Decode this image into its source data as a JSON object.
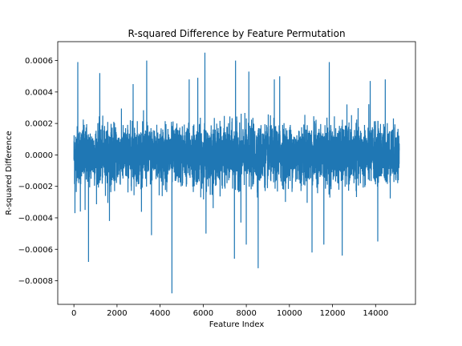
{
  "chart_data": {
    "type": "line",
    "title": "R-squared Difference by Feature Permutation",
    "xlabel": "Feature Index",
    "ylabel": "R-squared Difference",
    "xlim": [
      -750,
      15850
    ],
    "ylim": [
      -0.00095,
      0.00072
    ],
    "x_ticks": [
      0,
      2000,
      4000,
      6000,
      8000,
      10000,
      12000,
      14000
    ],
    "x_tick_labels": [
      "0",
      "2000",
      "4000",
      "6000",
      "8000",
      "10000",
      "12000",
      "14000"
    ],
    "y_ticks": [
      -0.0008,
      -0.0006,
      -0.0004,
      -0.0002,
      0.0,
      0.0002,
      0.0004,
      0.0006
    ],
    "y_tick_labels": [
      "−0.0008",
      "−0.0006",
      "−0.0004",
      "−0.0002",
      "0.0000",
      "0.0002",
      "0.0004",
      "0.0006"
    ],
    "grid": false,
    "legend": "none",
    "series": [
      {
        "color": "#1f77b4",
        "n_points": 15100,
        "noise_scale": 9e-05,
        "notable_points": [
          {
            "x": 50,
            "y": -0.00037
          },
          {
            "x": 180,
            "y": 0.00059
          },
          {
            "x": 300,
            "y": -0.00036
          },
          {
            "x": 520,
            "y": -0.00035
          },
          {
            "x": 680,
            "y": -0.00068
          },
          {
            "x": 1200,
            "y": 0.00052
          },
          {
            "x": 1650,
            "y": -0.00042
          },
          {
            "x": 2750,
            "y": 0.00045
          },
          {
            "x": 3380,
            "y": 0.0006
          },
          {
            "x": 3600,
            "y": -0.00051
          },
          {
            "x": 4550,
            "y": -0.00088
          },
          {
            "x": 5350,
            "y": 0.00048
          },
          {
            "x": 5750,
            "y": 0.00049
          },
          {
            "x": 6080,
            "y": 0.00065
          },
          {
            "x": 6130,
            "y": -0.0005
          },
          {
            "x": 7500,
            "y": 0.0006
          },
          {
            "x": 7450,
            "y": -0.00066
          },
          {
            "x": 7750,
            "y": -0.00043
          },
          {
            "x": 8120,
            "y": 0.00053
          },
          {
            "x": 8000,
            "y": -0.00057
          },
          {
            "x": 8550,
            "y": -0.00072
          },
          {
            "x": 9300,
            "y": 0.00048
          },
          {
            "x": 9550,
            "y": 0.0005
          },
          {
            "x": 11050,
            "y": -0.00062
          },
          {
            "x": 11600,
            "y": -0.00057
          },
          {
            "x": 11850,
            "y": 0.00059
          },
          {
            "x": 12450,
            "y": -0.00064
          },
          {
            "x": 13750,
            "y": 0.00047
          },
          {
            "x": 14100,
            "y": -0.00055
          },
          {
            "x": 14450,
            "y": 0.00048
          }
        ]
      }
    ]
  }
}
